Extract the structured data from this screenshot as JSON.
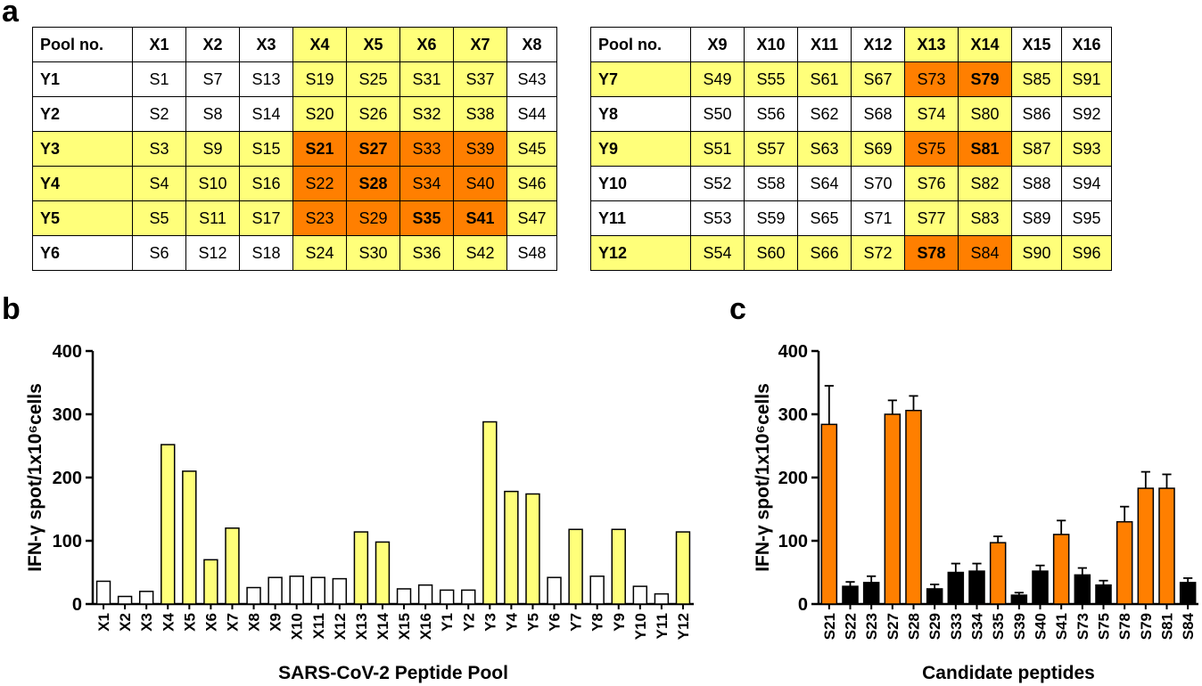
{
  "panels": {
    "a": "a",
    "b": "b",
    "c": "c"
  },
  "colors": {
    "yellow": "#ffff7a",
    "orange": "#ff7f00",
    "white": "#ffffff",
    "black": "#000000"
  },
  "table_left": {
    "columns": [
      "Pool no.",
      "X1",
      "X2",
      "X3",
      "X4",
      "X5",
      "X6",
      "X7",
      "X8"
    ],
    "rows": [
      {
        "label": "Y1",
        "cells": [
          "S1",
          "S7",
          "S13",
          "S19",
          "S25",
          "S31",
          "S37",
          "S43"
        ],
        "hl": [
          "",
          "",
          "",
          "y",
          "y",
          "y",
          "y",
          ""
        ],
        "bold": [
          0,
          0,
          0,
          0,
          0,
          0,
          0,
          0
        ],
        "row_hl": ""
      },
      {
        "label": "Y2",
        "cells": [
          "S2",
          "S8",
          "S14",
          "S20",
          "S26",
          "S32",
          "S38",
          "S44"
        ],
        "hl": [
          "",
          "",
          "",
          "y",
          "y",
          "y",
          "y",
          ""
        ],
        "bold": [
          0,
          0,
          0,
          0,
          0,
          0,
          0,
          0
        ],
        "row_hl": ""
      },
      {
        "label": "Y3",
        "cells": [
          "S3",
          "S9",
          "S15",
          "S21",
          "S27",
          "S33",
          "S39",
          "S45"
        ],
        "hl": [
          "y",
          "y",
          "y",
          "o",
          "o",
          "o",
          "o",
          "y"
        ],
        "bold": [
          0,
          0,
          0,
          1,
          1,
          0,
          0,
          0
        ],
        "row_hl": "y"
      },
      {
        "label": "Y4",
        "cells": [
          "S4",
          "S10",
          "S16",
          "S22",
          "S28",
          "S34",
          "S40",
          "S46"
        ],
        "hl": [
          "y",
          "y",
          "y",
          "o",
          "o",
          "o",
          "o",
          "y"
        ],
        "bold": [
          0,
          0,
          0,
          0,
          1,
          0,
          0,
          0
        ],
        "row_hl": "y"
      },
      {
        "label": "Y5",
        "cells": [
          "S5",
          "S11",
          "S17",
          "S23",
          "S29",
          "S35",
          "S41",
          "S47"
        ],
        "hl": [
          "y",
          "y",
          "y",
          "o",
          "o",
          "o",
          "o",
          "y"
        ],
        "bold": [
          0,
          0,
          0,
          0,
          0,
          1,
          1,
          0
        ],
        "row_hl": "y"
      },
      {
        "label": "Y6",
        "cells": [
          "S6",
          "S12",
          "S18",
          "S24",
          "S30",
          "S36",
          "S42",
          "S48"
        ],
        "hl": [
          "",
          "",
          "",
          "y",
          "y",
          "y",
          "y",
          ""
        ],
        "bold": [
          0,
          0,
          0,
          0,
          0,
          0,
          0,
          0
        ],
        "row_hl": ""
      }
    ],
    "header_hl": [
      "",
      "",
      "",
      "",
      "y",
      "y",
      "y",
      "y",
      ""
    ]
  },
  "table_right": {
    "columns": [
      "Pool no.",
      "X9",
      "X10",
      "X11",
      "X12",
      "X13",
      "X14",
      "X15",
      "X16"
    ],
    "rows": [
      {
        "label": "Y7",
        "cells": [
          "S49",
          "S55",
          "S61",
          "S67",
          "S73",
          "S79",
          "S85",
          "S91"
        ],
        "hl": [
          "y",
          "y",
          "y",
          "y",
          "o",
          "o",
          "y",
          "y"
        ],
        "bold": [
          0,
          0,
          0,
          0,
          0,
          1,
          0,
          0
        ],
        "row_hl": "y"
      },
      {
        "label": "Y8",
        "cells": [
          "S50",
          "S56",
          "S62",
          "S68",
          "S74",
          "S80",
          "S86",
          "S92"
        ],
        "hl": [
          "",
          "",
          "",
          "",
          "y",
          "y",
          "",
          ""
        ],
        "bold": [
          0,
          0,
          0,
          0,
          0,
          0,
          0,
          0
        ],
        "row_hl": ""
      },
      {
        "label": "Y9",
        "cells": [
          "S51",
          "S57",
          "S63",
          "S69",
          "S75",
          "S81",
          "S87",
          "S93"
        ],
        "hl": [
          "y",
          "y",
          "y",
          "y",
          "o",
          "o",
          "y",
          "y"
        ],
        "bold": [
          0,
          0,
          0,
          0,
          0,
          1,
          0,
          0
        ],
        "row_hl": "y"
      },
      {
        "label": "Y10",
        "cells": [
          "S52",
          "S58",
          "S64",
          "S70",
          "S76",
          "S82",
          "S88",
          "S94"
        ],
        "hl": [
          "",
          "",
          "",
          "",
          "y",
          "y",
          "",
          ""
        ],
        "bold": [
          0,
          0,
          0,
          0,
          0,
          0,
          0,
          0
        ],
        "row_hl": ""
      },
      {
        "label": "Y11",
        "cells": [
          "S53",
          "S59",
          "S65",
          "S71",
          "S77",
          "S83",
          "S89",
          "S95"
        ],
        "hl": [
          "",
          "",
          "",
          "",
          "y",
          "y",
          "",
          ""
        ],
        "bold": [
          0,
          0,
          0,
          0,
          0,
          0,
          0,
          0
        ],
        "row_hl": ""
      },
      {
        "label": "Y12",
        "cells": [
          "S54",
          "S60",
          "S66",
          "S72",
          "S78",
          "S84",
          "S90",
          "S96"
        ],
        "hl": [
          "y",
          "y",
          "y",
          "y",
          "o",
          "o",
          "y",
          "y"
        ],
        "bold": [
          0,
          0,
          0,
          0,
          1,
          0,
          0,
          0
        ],
        "row_hl": "y"
      }
    ],
    "header_hl": [
      "",
      "",
      "",
      "",
      "",
      "y",
      "y",
      "",
      ""
    ]
  },
  "chart_data": [
    {
      "type": "bar",
      "title": "",
      "xlabel": "SARS-CoV-2 Peptide Pool",
      "ylabel": "IFN-γ spot/1x10⁶cells",
      "ylim": [
        0,
        400
      ],
      "yticks": [
        "0",
        "100",
        "200",
        "300",
        "400"
      ],
      "categories": [
        "X1",
        "X2",
        "X3",
        "X4",
        "X5",
        "X6",
        "X7",
        "X8",
        "X9",
        "X10",
        "X11",
        "X12",
        "X13",
        "X14",
        "X15",
        "X16",
        "Y1",
        "Y2",
        "Y3",
        "Y4",
        "Y5",
        "Y6",
        "Y7",
        "Y8",
        "Y9",
        "Y10",
        "Y11",
        "Y12"
      ],
      "values": [
        36,
        12,
        20,
        252,
        210,
        70,
        120,
        26,
        42,
        44,
        42,
        40,
        114,
        98,
        24,
        30,
        22,
        22,
        288,
        178,
        174,
        42,
        118,
        44,
        118,
        28,
        16,
        114
      ],
      "bar_colors": [
        "white",
        "white",
        "white",
        "yellow",
        "yellow",
        "yellow",
        "yellow",
        "white",
        "white",
        "white",
        "white",
        "white",
        "yellow",
        "yellow",
        "white",
        "white",
        "white",
        "white",
        "yellow",
        "yellow",
        "yellow",
        "white",
        "yellow",
        "white",
        "yellow",
        "white",
        "white",
        "yellow"
      ]
    },
    {
      "type": "bar",
      "title": "",
      "xlabel": "Candidate peptides",
      "ylabel": "IFN-γ spot/1x10⁶cells",
      "ylim": [
        0,
        400
      ],
      "yticks": [
        "0",
        "100",
        "200",
        "300",
        "400"
      ],
      "categories": [
        "S21",
        "S22",
        "S23",
        "S27",
        "S28",
        "S29",
        "S33",
        "S34",
        "S35",
        "S39",
        "S40",
        "S41",
        "S73",
        "S75",
        "S78",
        "S79",
        "S81",
        "S84"
      ],
      "values": [
        284,
        28,
        34,
        300,
        306,
        24,
        50,
        52,
        97,
        14,
        52,
        110,
        46,
        30,
        130,
        183,
        183,
        34
      ],
      "errors": [
        61,
        7,
        10,
        22,
        23,
        7,
        14,
        12,
        10,
        4,
        9,
        22,
        11,
        7,
        24,
        26,
        22,
        7
      ],
      "bar_colors": [
        "orange",
        "black",
        "black",
        "orange",
        "orange",
        "black",
        "black",
        "black",
        "orange",
        "black",
        "black",
        "orange",
        "black",
        "black",
        "orange",
        "orange",
        "orange",
        "black"
      ]
    }
  ]
}
